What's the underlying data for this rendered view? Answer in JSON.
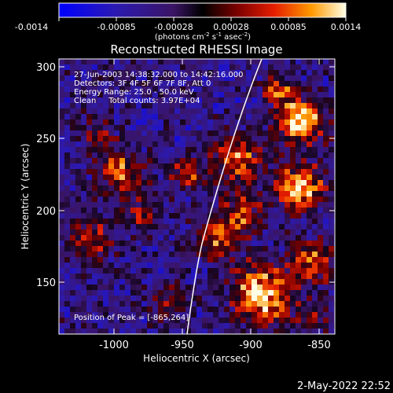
{
  "colorbar": {
    "tick_labels": [
      "-0.0014",
      "-0.00085",
      "-0.00028",
      "0.00028",
      "0.00085",
      "0.0014"
    ],
    "unit_base": "(photons cm",
    "unit_exp1": "-2",
    "unit_mid1": " s",
    "unit_exp2": "-1",
    "unit_mid2": " asec",
    "unit_exp3": "-2",
    "unit_end": ")"
  },
  "plot": {
    "title": "Reconstructed RHESSI Image",
    "xlabel": "Heliocentric X (arcsec)",
    "ylabel": "Heliocentric Y (arcsec)",
    "xticks": [
      "-1000",
      "-950",
      "-900",
      "-850"
    ],
    "yticks": [
      "300",
      "250",
      "200",
      "150"
    ],
    "info": {
      "line1": "27-Jun-2003 14:38:32.000 to 14:42:16.000",
      "line2": "Detectors: 3F 4F 5F 6F 7F 8F, Att 0",
      "line3": "Energy Range: 25.0 - 50.0 keV",
      "line4": "Clean     Total counts: 3.97E+04"
    },
    "peak": "Position of Peak = [-865,264]"
  },
  "footer": {
    "date": "2-May-2022 22:52"
  },
  "image_data": {
    "type": "heatmap",
    "xlim": [
      -1036,
      -843
    ],
    "ylim": [
      112,
      307
    ],
    "clim": [
      -0.0014,
      0.0014
    ],
    "peak": [
      -865,
      264
    ],
    "limb_line": true
  }
}
